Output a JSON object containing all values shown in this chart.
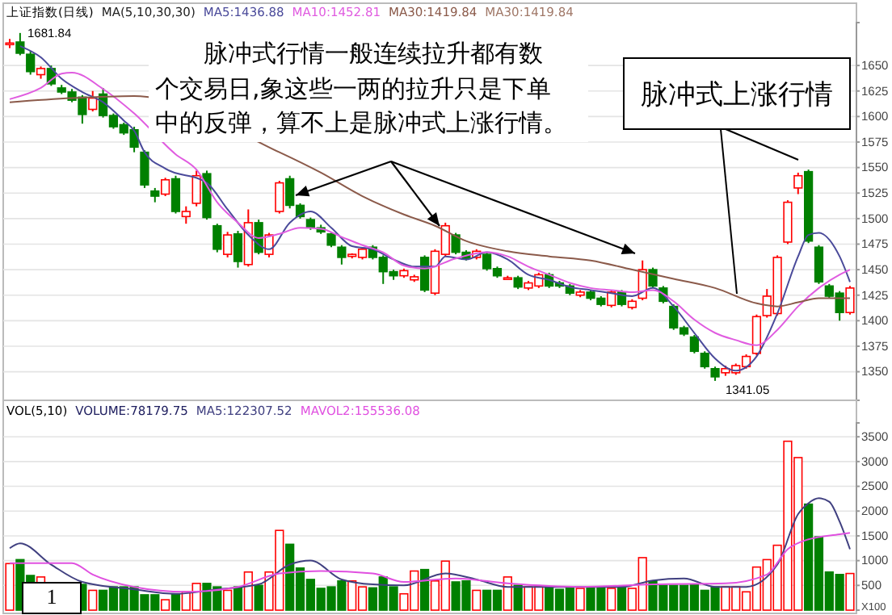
{
  "chart_data": [
    {
      "type": "candlestick",
      "title": "上证指数(日线)",
      "subtitle": "MA(5,10,30,30)",
      "legend": "top left",
      "tick_labels": "y",
      "grid": true,
      "categories": [
        null,
        null,
        null,
        null,
        null,
        null,
        null,
        null,
        null,
        null,
        null,
        null,
        null,
        null,
        null,
        null,
        null,
        null,
        null,
        null,
        null,
        null,
        null,
        null,
        null,
        null,
        null,
        null,
        null,
        null,
        null,
        null,
        null,
        null,
        null,
        null,
        null,
        null,
        null,
        null,
        null,
        null,
        null,
        null,
        null,
        null,
        null,
        null,
        null,
        null,
        null,
        null,
        null,
        null,
        null,
        null,
        null,
        null,
        null,
        null,
        null,
        null,
        null,
        null,
        null,
        null,
        null,
        null,
        null,
        null,
        null,
        null,
        null,
        null,
        null,
        null,
        null,
        null,
        null,
        null,
        null,
        null
      ],
      "ohlc": [
        [
          1671,
          1676,
          1667,
          1672
        ],
        [
          1673,
          1681.84,
          1660,
          1662
        ],
        [
          1661,
          1664,
          1641,
          1644
        ],
        [
          1641,
          1649,
          1637,
          1647
        ],
        [
          1647,
          1650,
          1630,
          1632
        ],
        [
          1628,
          1631,
          1622,
          1624
        ],
        [
          1624,
          1627,
          1614,
          1616
        ],
        [
          1619,
          1621,
          1593,
          1602
        ],
        [
          1607,
          1625,
          1605,
          1618
        ],
        [
          1622,
          1628,
          1599,
          1601
        ],
        [
          1601,
          1603,
          1588,
          1590
        ],
        [
          1592,
          1594,
          1582,
          1584
        ],
        [
          1587,
          1590,
          1565,
          1570
        ],
        [
          1565,
          1567,
          1530,
          1533
        ],
        [
          1527,
          1530,
          1516,
          1522
        ],
        [
          1524,
          1540,
          1522,
          1538
        ],
        [
          1539,
          1542,
          1505,
          1507
        ],
        [
          1502,
          1512,
          1495,
          1507
        ],
        [
          1515,
          1547,
          1512,
          1542
        ],
        [
          1544,
          1547,
          1499,
          1501
        ],
        [
          1493,
          1495,
          1467,
          1470
        ],
        [
          1465,
          1487,
          1462,
          1484
        ],
        [
          1485,
          1488,
          1452,
          1458
        ],
        [
          1455,
          1509,
          1453,
          1496
        ],
        [
          1496,
          1499,
          1465,
          1467
        ],
        [
          1465,
          1486,
          1462,
          1484
        ],
        [
          1507,
          1537,
          1505,
          1535
        ],
        [
          1539,
          1542,
          1510,
          1513
        ],
        [
          1513,
          1515,
          1500,
          1502
        ],
        [
          1499,
          1501,
          1489,
          1491
        ],
        [
          1491,
          1494,
          1485,
          1487
        ],
        [
          1485,
          1487,
          1472,
          1474
        ],
        [
          1472,
          1474,
          1455,
          1462
        ],
        [
          1463,
          1466,
          1461,
          1465
        ],
        [
          1462,
          1472,
          1460,
          1470
        ],
        [
          1472,
          1474,
          1460,
          1462
        ],
        [
          1462,
          1464,
          1436,
          1448
        ],
        [
          1448,
          1450,
          1440,
          1444
        ],
        [
          1444,
          1451,
          1442,
          1449
        ],
        [
          1440,
          1445,
          1438,
          1443
        ],
        [
          1462,
          1464,
          1428,
          1430
        ],
        [
          1427,
          1470,
          1425,
          1468
        ],
        [
          1465,
          1496,
          1463,
          1493
        ],
        [
          1484,
          1486,
          1465,
          1467
        ],
        [
          1467,
          1469,
          1459,
          1461
        ],
        [
          1462,
          1470,
          1460,
          1468
        ],
        [
          1465,
          1467,
          1449,
          1451
        ],
        [
          1451,
          1453,
          1442,
          1444
        ],
        [
          1441,
          1444,
          1440,
          1442
        ],
        [
          1442,
          1444,
          1431,
          1433
        ],
        [
          1432,
          1439,
          1430,
          1437
        ],
        [
          1434,
          1447,
          1432,
          1445
        ],
        [
          1445,
          1447,
          1432,
          1434
        ],
        [
          1437,
          1439,
          1432,
          1434
        ],
        [
          1434,
          1436,
          1425,
          1427
        ],
        [
          1425,
          1430,
          1423,
          1428
        ],
        [
          1428,
          1430,
          1420,
          1422
        ],
        [
          1422,
          1424,
          1414,
          1416
        ],
        [
          1415,
          1430,
          1413,
          1428
        ],
        [
          1428,
          1430,
          1414,
          1416
        ],
        [
          1413,
          1421,
          1411,
          1419
        ],
        [
          1422,
          1459,
          1420,
          1450
        ],
        [
          1450,
          1452,
          1432,
          1434
        ],
        [
          1432,
          1434,
          1417,
          1419
        ],
        [
          1414,
          1416,
          1391,
          1393
        ],
        [
          1393,
          1395,
          1385,
          1387
        ],
        [
          1384,
          1386,
          1368,
          1370
        ],
        [
          1368,
          1370,
          1353,
          1355
        ],
        [
          1353,
          1355,
          1341.05,
          1345
        ],
        [
          1349,
          1356,
          1346,
          1353
        ],
        [
          1349,
          1358,
          1347,
          1356
        ],
        [
          1355,
          1367,
          1353,
          1365
        ],
        [
          1368,
          1406,
          1366,
          1404
        ],
        [
          1405,
          1431,
          1403,
          1424
        ],
        [
          1407,
          1464,
          1405,
          1462
        ],
        [
          1477,
          1518,
          1475,
          1516
        ],
        [
          1530,
          1545,
          1524,
          1542
        ],
        [
          1546,
          1548,
          1476,
          1478
        ],
        [
          1472,
          1474,
          1436,
          1438
        ],
        [
          1434,
          1436,
          1422,
          1424
        ],
        [
          1427,
          1429,
          1400,
          1408
        ],
        [
          1408,
          1434,
          1406,
          1432
        ]
      ],
      "colors": [
        "#ff0000",
        "#008000",
        "#008000",
        "#ff0000",
        "#008000",
        "#008000",
        "#008000",
        "#008000",
        "#ff0000",
        "#008000",
        "#008000",
        "#008000",
        "#008000",
        "#008000",
        "#008000",
        "#ff0000",
        "#008000",
        "#ff0000",
        "#ff0000",
        "#008000",
        "#008000",
        "#ff0000",
        "#008000",
        "#ff0000",
        "#008000",
        "#ff0000",
        "#ff0000",
        "#008000",
        "#008000",
        "#008000",
        "#008000",
        "#008000",
        "#008000",
        "#ff0000",
        "#ff0000",
        "#008000",
        "#008000",
        "#008000",
        "#ff0000",
        "#ff0000",
        "#008000",
        "#ff0000",
        "#ff0000",
        "#008000",
        "#008000",
        "#ff0000",
        "#008000",
        "#008000",
        "#ff0000",
        "#008000",
        "#ff0000",
        "#ff0000",
        "#008000",
        "#008000",
        "#008000",
        "#ff0000",
        "#008000",
        "#008000",
        "#ff0000",
        "#008000",
        "#ff0000",
        "#ff0000",
        "#008000",
        "#008000",
        "#008000",
        "#008000",
        "#008000",
        "#008000",
        "#008000",
        "#ff0000",
        "#ff0000",
        "#ff0000",
        "#ff0000",
        "#ff0000",
        "#ff0000",
        "#ff0000",
        "#ff0000",
        "#008000",
        "#008000",
        "#008000",
        "#008000",
        "#ff0000"
      ],
      "series": [
        {
          "name": "MA5:1436.88",
          "type": "line",
          "color": "#4a4a9a",
          "values": [
            null,
            1669,
            null,
            1658,
            null,
            1637,
            null,
            1624,
            null,
            1614,
            null,
            1596,
            1586,
            1565,
            null,
            1549,
            null,
            null,
            null,
            1535,
            null,
            1509,
            null,
            1484,
            null,
            1470,
            null,
            1496,
            null,
            1507,
            null,
            1491,
            null,
            1473,
            null,
            1470,
            null,
            1460,
            null,
            1453,
            null,
            1453,
            1463,
            null,
            1460,
            null,
            1467,
            null,
            1460,
            null,
            1445,
            null,
            1440,
            null,
            1433,
            null,
            1430,
            null,
            1427,
            null,
            1424,
            null,
            1432,
            null,
            1414,
            null,
            1388,
            null,
            1363,
            null,
            1351,
            null,
            1365,
            null,
            1407,
            null,
            1463,
            1484,
            1486,
            null,
            1463,
            1438
          ]
        },
        {
          "name": "MA10:1452.81",
          "type": "line",
          "color": "#e05ce0",
          "values": [
            1617,
            null,
            null,
            1628,
            null,
            1642,
            1643,
            null,
            null,
            1627,
            null,
            null,
            1603,
            null,
            null,
            null,
            1563,
            null,
            1548,
            null,
            1516,
            null,
            1496,
            null,
            1481,
            null,
            1485,
            null,
            1491,
            null,
            1490,
            null,
            1482,
            null,
            1474,
            null,
            1467,
            null,
            1454,
            null,
            1451,
            null,
            null,
            1461,
            null,
            null,
            1467,
            null,
            1463,
            null,
            1453,
            null,
            1445,
            null,
            1437,
            null,
            1432,
            null,
            1430,
            null,
            1428,
            null,
            1430,
            null,
            1419,
            null,
            1401,
            null,
            1388,
            null,
            1381,
            null,
            1376,
            null,
            1391,
            null,
            1414,
            null,
            1432,
            null,
            1445,
            1450
          ]
        },
        {
          "name": "MA30:1419.84",
          "type": "line",
          "color": "#8b5a4a",
          "values": [
            1614,
            null,
            null,
            null,
            null,
            null,
            1618,
            null,
            null,
            null,
            null,
            null,
            1620,
            null,
            null,
            null,
            null,
            null,
            null,
            null,
            null,
            null,
            null,
            null,
            null,
            null,
            1565,
            null,
            null,
            null,
            1545,
            null,
            null,
            null,
            1522,
            null,
            null,
            null,
            1504,
            null,
            null,
            1493,
            null,
            null,
            1478,
            null,
            null,
            null,
            1468,
            null,
            null,
            null,
            1463,
            null,
            null,
            null,
            1459,
            null,
            null,
            null,
            1450,
            null,
            null,
            null,
            1441,
            null,
            null,
            null,
            1432,
            null,
            null,
            null,
            1417,
            null,
            1414,
            null,
            1418,
            null,
            1422,
            null,
            null,
            1422
          ]
        }
      ],
      "ylim": [
        1322,
        1692
      ],
      "yticks": [
        1350,
        1375,
        1400,
        1425,
        1450,
        1475,
        1500,
        1525,
        1550,
        1575,
        1600,
        1625,
        1650
      ],
      "annotations": [
        "1681.84",
        "1341.05",
        "MA30:1419.84",
        "脉冲式行情一般连续拉升都有数",
        "个交易日,象这些一两的拉升只是下单",
        "中的反弹，算不上是脉冲式上涨行情。",
        "脉冲式上涨行情"
      ]
    },
    {
      "type": "bar",
      "title": "VOL(5,10)",
      "subtitle": "VOLUME:78179.75",
      "legend": "top left",
      "tick_labels": "y",
      "grid": true,
      "categories": [
        null,
        null,
        null,
        null,
        null,
        null,
        null,
        null,
        null,
        null,
        null,
        null,
        null,
        null,
        null,
        null,
        null,
        null,
        null,
        null,
        null,
        null,
        null,
        null,
        null,
        null,
        null,
        null,
        null,
        null,
        null,
        null,
        null,
        null,
        null,
        null,
        null,
        null,
        null,
        null,
        null,
        null,
        null,
        null,
        null,
        null,
        null,
        null,
        null,
        null,
        null,
        null,
        null,
        null,
        null,
        null,
        null,
        null,
        null,
        null,
        null,
        null,
        null,
        null,
        null,
        null,
        null,
        null,
        null,
        null,
        null,
        null,
        null,
        null,
        null,
        null,
        null,
        null,
        null,
        null,
        null,
        null
      ],
      "series": [
        {
          "values": [
            940,
            1020,
            700,
            670,
            null,
            null,
            null,
            520,
            400,
            400,
            470,
            470,
            470,
            310,
            310,
            210,
            330,
            370,
            540,
            540,
            470,
            400,
            470,
            770,
            500,
            770,
            1610,
            1330,
            850,
            620,
            440,
            470,
            590,
            590,
            470,
            450,
            670,
            470,
            330,
            790,
            820,
            590,
            990,
            570,
            590,
            400,
            400,
            400,
            670,
            500,
            470,
            470,
            470,
            420,
            470,
            440,
            470,
            470,
            440,
            470,
            440,
            1060,
            590,
            500,
            500,
            500,
            520,
            400,
            470,
            470,
            470,
            370,
            870,
            1020,
            1310,
            3410,
            3080,
            2140,
            1480,
            770,
            720,
            740
          ],
          "colors": [
            "#ff0000",
            "#008000",
            "#008000",
            "#ff0000",
            null,
            null,
            null,
            "#008000",
            "#ff0000",
            "#008000",
            "#008000",
            "#008000",
            "#008000",
            "#008000",
            "#008000",
            "#ff0000",
            "#008000",
            "#ff0000",
            "#ff0000",
            "#008000",
            "#008000",
            "#ff0000",
            "#008000",
            "#ff0000",
            "#008000",
            "#ff0000",
            "#ff0000",
            "#008000",
            "#008000",
            "#008000",
            "#008000",
            "#008000",
            "#008000",
            "#ff0000",
            "#ff0000",
            "#008000",
            "#008000",
            "#008000",
            "#ff0000",
            "#ff0000",
            "#008000",
            "#ff0000",
            "#ff0000",
            "#008000",
            "#008000",
            "#ff0000",
            "#008000",
            "#008000",
            "#ff0000",
            "#008000",
            "#ff0000",
            "#ff0000",
            "#008000",
            "#008000",
            "#008000",
            "#ff0000",
            "#008000",
            "#008000",
            "#ff0000",
            "#008000",
            "#ff0000",
            "#ff0000",
            "#008000",
            "#008000",
            "#008000",
            "#008000",
            "#008000",
            "#008000",
            "#008000",
            "#ff0000",
            "#ff0000",
            "#ff0000",
            "#ff0000",
            "#ff0000",
            "#ff0000",
            "#ff0000",
            "#ff0000",
            "#008000",
            "#008000",
            "#008000",
            "#008000",
            "#ff0000"
          ]
        },
        {
          "name": "MA5:122307.52",
          "type": "line",
          "color": "#404080",
          "values": [
            1250,
            1350,
            null,
            null,
            920,
            null,
            null,
            570,
            null,
            null,
            null,
            null,
            420,
            null,
            null,
            null,
            330,
            null,
            null,
            null,
            420,
            null,
            null,
            null,
            520,
            null,
            null,
            920,
            null,
            1000,
            null,
            null,
            620,
            null,
            null,
            520,
            null,
            null,
            500,
            null,
            null,
            null,
            740,
            null,
            null,
            620,
            null,
            null,
            470,
            null,
            null,
            470,
            null,
            null,
            null,
            470,
            null,
            null,
            null,
            470,
            null,
            null,
            600,
            null,
            null,
            640,
            null,
            null,
            470,
            null,
            null,
            470,
            null,
            null,
            920,
            null,
            1940,
            2160,
            2260,
            2190,
            1790,
            1230
          ]
        },
        {
          "name": "MAVOL2:155536.08",
          "type": "line",
          "color": "#e050e0",
          "values": [
            950,
            null,
            null,
            null,
            null,
            null,
            950,
            null,
            720,
            null,
            null,
            null,
            470,
            null,
            null,
            null,
            null,
            370,
            null,
            null,
            null,
            null,
            470,
            null,
            null,
            null,
            740,
            null,
            null,
            null,
            790,
            null,
            null,
            null,
            null,
            740,
            null,
            null,
            570,
            null,
            null,
            null,
            null,
            640,
            null,
            null,
            null,
            null,
            540,
            null,
            null,
            null,
            null,
            null,
            null,
            470,
            null,
            null,
            null,
            null,
            null,
            null,
            520,
            null,
            null,
            null,
            null,
            null,
            null,
            540,
            null,
            null,
            null,
            720,
            null,
            1230,
            null,
            1430,
            null,
            null,
            1530,
            1560
          ]
        }
      ],
      "ylim": [
        0,
        3780
      ],
      "yticks": [
        500,
        1000,
        1500,
        2000,
        2500,
        3000,
        3500
      ],
      "annotations": [
        "1",
        "X100"
      ]
    }
  ]
}
